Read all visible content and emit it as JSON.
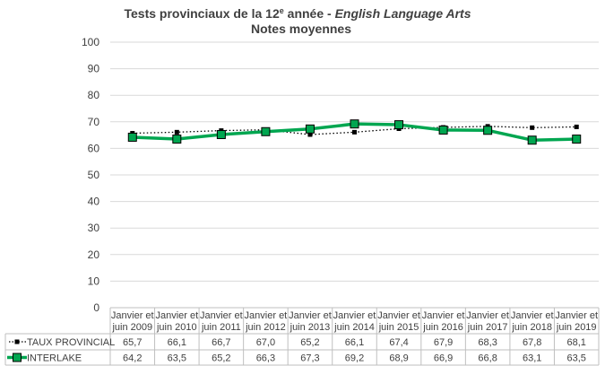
{
  "chart_data": {
    "type": "line",
    "title": {
      "line1_prefix": "Tests provinciaux de la 12",
      "line1_sup": "e",
      "line1_mid": " année - ",
      "line1_italic": "English Language Arts",
      "line2": "Notes moyennes"
    },
    "ylim": [
      0,
      100
    ],
    "yticks": [
      0,
      10,
      20,
      30,
      40,
      50,
      60,
      70,
      80,
      90,
      100
    ],
    "grid": true,
    "categories": [
      [
        "Janvier et",
        "juin 2009"
      ],
      [
        "Janvier et",
        "juin 2010"
      ],
      [
        "Janvier et",
        "juin 2011"
      ],
      [
        "Janvier et",
        "juin 2012"
      ],
      [
        "Janvier et",
        "juin 2013"
      ],
      [
        "Janvier et",
        "juin 2014"
      ],
      [
        "Janvier et",
        "juin 2015"
      ],
      [
        "Janvier et",
        "juin 2016"
      ],
      [
        "Janvier et",
        "juin 2017"
      ],
      [
        "Janvier et",
        "juin 2018"
      ],
      [
        "Janvier et",
        "juin 2019"
      ]
    ],
    "series": [
      {
        "name": "TAUX PROVINCIAL",
        "color": "#000000",
        "style": "dotted",
        "values": [
          65.7,
          66.1,
          66.7,
          67.0,
          65.2,
          66.1,
          67.4,
          67.9,
          68.3,
          67.8,
          68.1
        ],
        "labels": [
          "65,7",
          "66,1",
          "66,7",
          "67,0",
          "65,2",
          "66,1",
          "67,4",
          "67,9",
          "68,3",
          "67,8",
          "68,1"
        ]
      },
      {
        "name": "INTERLAKE",
        "color": "#00a650",
        "style": "solid",
        "values": [
          64.2,
          63.5,
          65.2,
          66.3,
          67.3,
          69.2,
          68.9,
          66.9,
          66.8,
          63.1,
          63.5
        ],
        "labels": [
          "64,2",
          "63,5",
          "65,2",
          "66,3",
          "67,3",
          "69,2",
          "68,9",
          "66,9",
          "66,8",
          "63,1",
          "63,5"
        ]
      }
    ]
  }
}
